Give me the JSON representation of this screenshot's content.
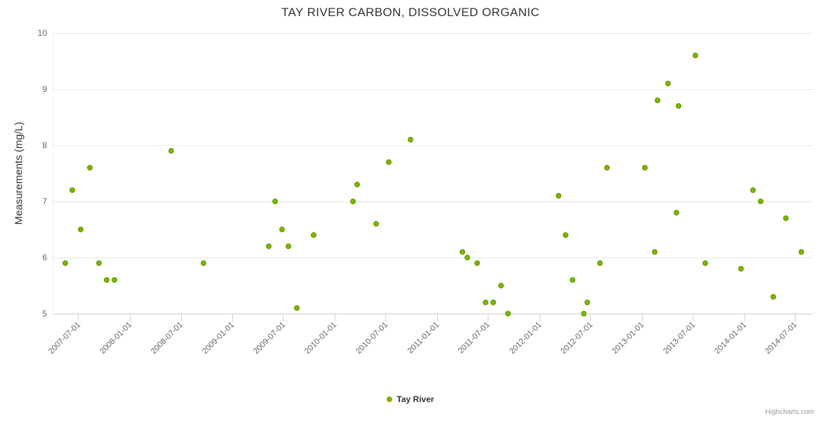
{
  "title": "TAY RIVER CARBON, DISSOLVED ORGANIC",
  "y_axis": {
    "title": "Measurements (mg/L)"
  },
  "legend": {
    "label": "Tay River"
  },
  "credits": {
    "label": "Highcharts.com"
  },
  "colors": {
    "point": "#7cb500",
    "point_border": "#679700",
    "grid": "#e6e6e6",
    "axis_label": "#666666",
    "title_text": "#333333"
  },
  "chart_data": {
    "type": "scatter",
    "title": "TAY RIVER CARBON, DISSOLVED ORGANIC",
    "xlabel": "",
    "ylabel": "Measurements (mg/L)",
    "ylim": [
      5,
      10
    ],
    "y_ticks": [
      "5",
      "6",
      "7",
      "8",
      "9",
      "10"
    ],
    "xlim": [
      "2007-04-01",
      "2014-09-01"
    ],
    "x_ticks": [
      "2007-07-01",
      "2008-01-01",
      "2008-07-01",
      "2009-01-01",
      "2009-07-01",
      "2010-01-01",
      "2010-07-01",
      "2011-01-01",
      "2011-07-01",
      "2012-01-01",
      "2012-07-01",
      "2013-01-01",
      "2013-07-01",
      "2014-01-01",
      "2014-07-01"
    ],
    "grid": "horizontal",
    "legend_position": "bottom-center",
    "series": [
      {
        "name": "Tay River",
        "color": "#7cb500",
        "points": [
          [
            "2007-05-15",
            5.9
          ],
          [
            "2007-06-10",
            7.2
          ],
          [
            "2007-07-10",
            6.5
          ],
          [
            "2007-08-12",
            7.6
          ],
          [
            "2007-09-12",
            5.9
          ],
          [
            "2007-10-10",
            5.6
          ],
          [
            "2007-11-07",
            5.6
          ],
          [
            "2008-05-28",
            7.9
          ],
          [
            "2008-09-20",
            5.9
          ],
          [
            "2009-05-10",
            6.2
          ],
          [
            "2009-06-01",
            7.0
          ],
          [
            "2009-06-28",
            6.5
          ],
          [
            "2009-07-20",
            6.2
          ],
          [
            "2009-08-18",
            5.1
          ],
          [
            "2009-10-18",
            6.4
          ],
          [
            "2010-03-07",
            7.0
          ],
          [
            "2010-03-22",
            7.3
          ],
          [
            "2010-05-28",
            6.6
          ],
          [
            "2010-07-12",
            7.7
          ],
          [
            "2010-09-28",
            8.1
          ],
          [
            "2011-04-01",
            6.1
          ],
          [
            "2011-04-18",
            6.0
          ],
          [
            "2011-05-24",
            5.9
          ],
          [
            "2011-06-24",
            5.2
          ],
          [
            "2011-07-21",
            5.2
          ],
          [
            "2011-08-18",
            5.5
          ],
          [
            "2011-09-12",
            5.0
          ],
          [
            "2012-03-10",
            7.1
          ],
          [
            "2012-04-03",
            6.4
          ],
          [
            "2012-04-27",
            5.6
          ],
          [
            "2012-06-08",
            5.0
          ],
          [
            "2012-06-21",
            5.2
          ],
          [
            "2012-08-03",
            5.9
          ],
          [
            "2012-08-30",
            7.6
          ],
          [
            "2013-01-12",
            7.6
          ],
          [
            "2013-02-15",
            6.1
          ],
          [
            "2013-02-24",
            8.8
          ],
          [
            "2013-04-03",
            9.1
          ],
          [
            "2013-05-03",
            6.8
          ],
          [
            "2013-05-12",
            8.7
          ],
          [
            "2013-07-09",
            9.6
          ],
          [
            "2013-08-15",
            5.9
          ],
          [
            "2013-12-21",
            5.8
          ],
          [
            "2014-01-31",
            7.2
          ],
          [
            "2014-03-01",
            7.0
          ],
          [
            "2014-04-15",
            5.3
          ],
          [
            "2014-05-28",
            6.7
          ],
          [
            "2014-07-22",
            6.1
          ]
        ]
      }
    ]
  }
}
